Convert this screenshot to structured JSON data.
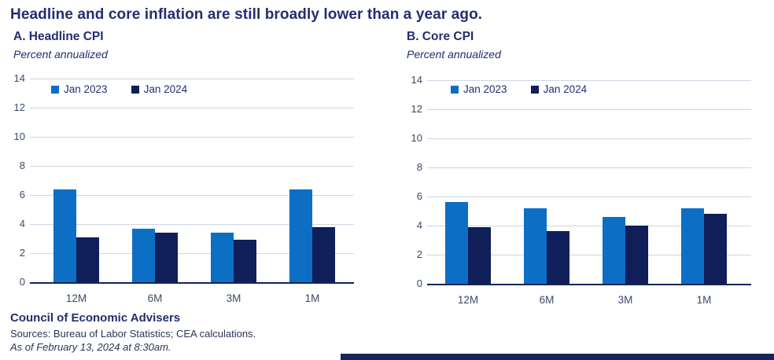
{
  "header": {
    "title": "Headline and core inflation are still broadly lower than a year ago."
  },
  "colors": {
    "jan2023_bar": "#0d6fc4",
    "jan2024_bar": "#101e5a",
    "gridline": "#ccd6e4",
    "axis_line": "#14245c",
    "navy_text": "#232e6f",
    "tick_text": "#3a4a66",
    "footer_text": "#2a3554",
    "brand_bar": "#16245c"
  },
  "chart_data": [
    {
      "type": "bar",
      "title": "A. Headline CPI",
      "subtitle": "Percent annualized",
      "categories": [
        "12M",
        "6M",
        "3M",
        "1M"
      ],
      "series": [
        {
          "name": "Jan 2023",
          "values": [
            6.4,
            3.7,
            3.4,
            6.4
          ]
        },
        {
          "name": "Jan 2024",
          "values": [
            3.1,
            3.4,
            2.9,
            3.8
          ]
        }
      ],
      "ylim": [
        0,
        14
      ],
      "yticks": [
        0,
        2,
        4,
        6,
        8,
        10,
        12,
        14
      ],
      "grid": true,
      "legend_position": "top-left-inside"
    },
    {
      "type": "bar",
      "title": "B. Core CPI",
      "subtitle": "Percent annualized",
      "categories": [
        "12M",
        "6M",
        "3M",
        "1M"
      ],
      "series": [
        {
          "name": "Jan 2023",
          "values": [
            5.6,
            5.2,
            4.6,
            5.2
          ]
        },
        {
          "name": "Jan 2024",
          "values": [
            3.9,
            3.6,
            4.0,
            4.8
          ]
        }
      ],
      "ylim": [
        0,
        14
      ],
      "yticks": [
        0,
        2,
        4,
        6,
        8,
        10,
        12,
        14
      ],
      "grid": true,
      "legend_position": "top-left-inside"
    }
  ],
  "footer": {
    "org": "Council of Economic Advisers",
    "sources": "Sources: Bureau of Labor Statistics; CEA calculations.",
    "asof": "As of February 13, 2024 at 8:30am."
  }
}
